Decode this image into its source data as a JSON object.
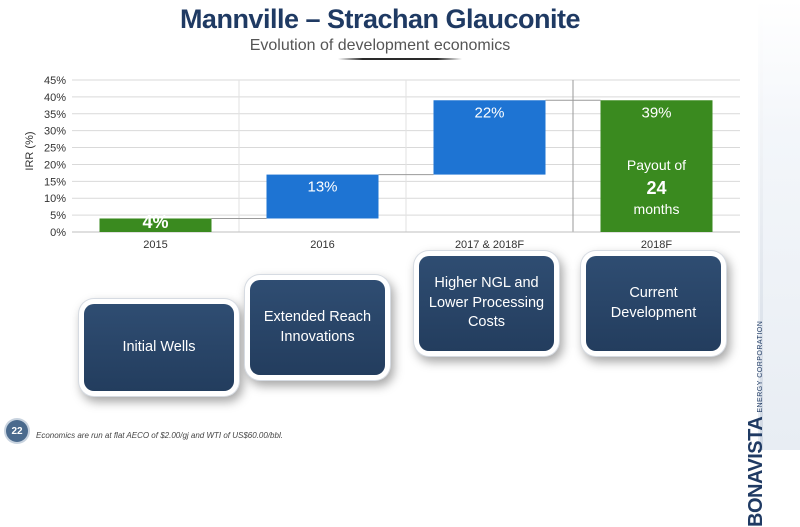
{
  "header": {
    "title": "Mannville – Strachan Glauconite",
    "subtitle": "Evolution of development economics"
  },
  "chart_data": {
    "type": "bar",
    "ylabel": "IRR (%)",
    "ylim": [
      0,
      45
    ],
    "yticks": [
      "0%",
      "5%",
      "10%",
      "15%",
      "20%",
      "25%",
      "30%",
      "35%",
      "40%",
      "45%"
    ],
    "grid": true,
    "categories": [
      "2015",
      "2016",
      "2017 & 2018F",
      "2018F"
    ],
    "bars": [
      {
        "category": "2015",
        "start": 0,
        "end": 4,
        "label": "4%",
        "color": "#3a8a1f"
      },
      {
        "category": "2016",
        "start": 4,
        "end": 17,
        "label": "13%",
        "color": "#1e74d3"
      },
      {
        "category": "2017 & 2018F",
        "start": 17,
        "end": 39,
        "label": "22%",
        "color": "#1e74d3"
      },
      {
        "category": "2018F",
        "start": 0,
        "end": 39,
        "label": "39%",
        "color": "#3a8a1f"
      }
    ],
    "annotation": {
      "line1": "Payout of",
      "line2": "24",
      "line3": "months"
    }
  },
  "steps": [
    {
      "label": "Initial Wells"
    },
    {
      "label": "Extended Reach Innovations"
    },
    {
      "label": "Higher NGL and Lower Processing Costs"
    },
    {
      "label": "Current Development"
    }
  ],
  "footer": {
    "page_number": "22",
    "footnote": "Economics are run at flat AECO of $2.00/gj and WTI of US$60.00/bbl."
  },
  "brand": {
    "name": "BONAVISTA",
    "tagline": "ENERGY CORPORATION"
  }
}
